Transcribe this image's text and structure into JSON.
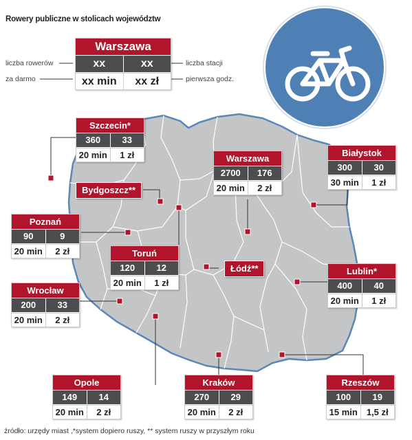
{
  "title": "Rowery publiczne w stolicach województw",
  "footer": "źródło: urzędy miast ,*system dopiero ruszy, ** system ruszy w przyszłym roku",
  "legend": {
    "city": "Warszawa",
    "bikes_label": "liczba rowerów",
    "stations_label": "liczba stacji",
    "free_label": "za darmo",
    "first_hour_label": "pierwsza godz.",
    "bikes": "xx",
    "stations": "xx",
    "free": "xx min",
    "price": "xx zł"
  },
  "icon": "bicycle-icon",
  "colors": {
    "accent": "#b2142b",
    "cell_dark": "#4d4d4f",
    "map_fill": "#c4c5c7",
    "map_border": "#5a86b8",
    "circle": "#4f80b5"
  },
  "cities": [
    {
      "name": "Szczecin*",
      "bikes": "360",
      "stations": "33",
      "free": "20 min",
      "price": "1 zł"
    },
    {
      "name": "Warszawa",
      "bikes": "2700",
      "stations": "176",
      "free": "20 min",
      "price": "2 zł"
    },
    {
      "name": "Białystok",
      "bikes": "300",
      "stations": "30",
      "free": "30 min",
      "price": "1 zł"
    },
    {
      "name": "Poznań",
      "bikes": "90",
      "stations": "9",
      "free": "20 min",
      "price": "2 zł"
    },
    {
      "name": "Toruń",
      "bikes": "120",
      "stations": "12",
      "free": "20 min",
      "price": "1 zł"
    },
    {
      "name": "Lublin*",
      "bikes": "400",
      "stations": "40",
      "free": "20 min",
      "price": "1 zł"
    },
    {
      "name": "Wrocław",
      "bikes": "200",
      "stations": "33",
      "free": "20 min",
      "price": "2 zł"
    },
    {
      "name": "Opole",
      "bikes": "149",
      "stations": "14",
      "free": "20 min",
      "price": "2 zł"
    },
    {
      "name": "Kraków",
      "bikes": "270",
      "stations": "29",
      "free": "20 min",
      "price": "2 zł"
    },
    {
      "name": "Rzeszów",
      "bikes": "100",
      "stations": "19",
      "free": "15 min",
      "price": "1,5 zł"
    }
  ],
  "planned": [
    {
      "name": "Bydgoszcz**"
    },
    {
      "name": "Łódź**"
    }
  ]
}
